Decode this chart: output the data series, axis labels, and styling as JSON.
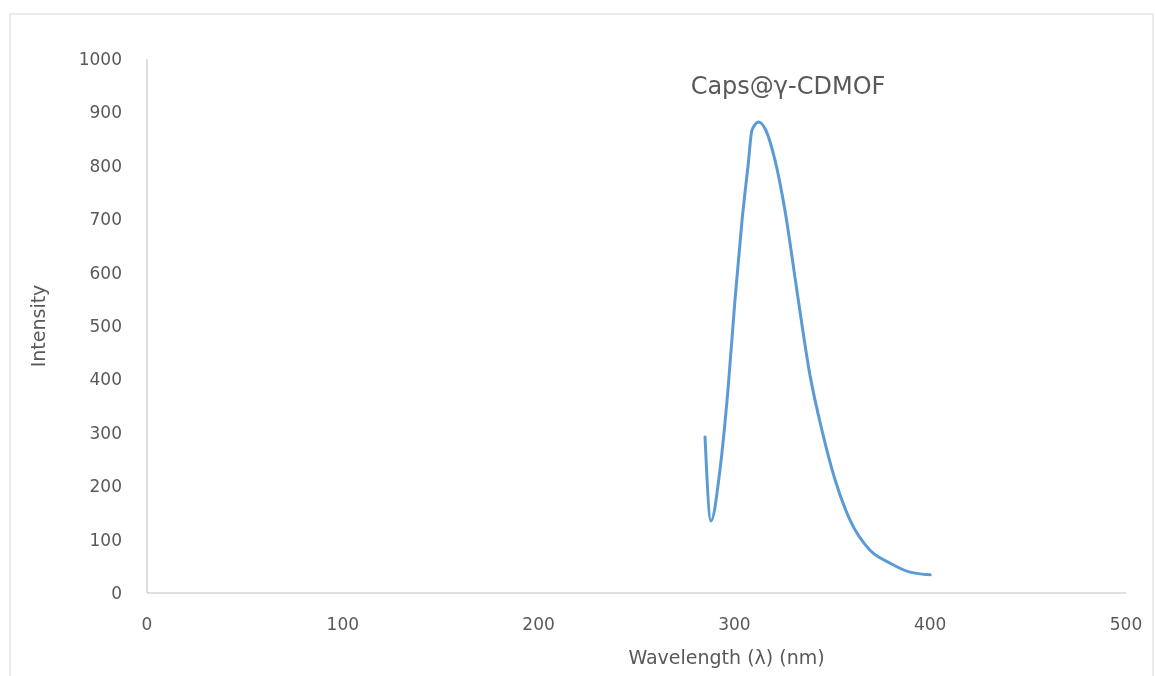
{
  "chart_data": {
    "type": "line",
    "title": "Caps@γ-CDMOF",
    "xlabel": "Wavelength (λ) (nm)",
    "ylabel": "Intensity",
    "series": [
      {
        "color": "#5b9bd5",
        "x": [
          285,
          288,
          292.6,
          296.7,
          300.3,
          303.9,
          307,
          309,
          312.5,
          316,
          320.7,
          325.8,
          331.9,
          338.6,
          344.7,
          351.4,
          359,
          369.3,
          379.5,
          389.7,
          400
        ],
        "values": [
          292,
          135,
          230,
          380,
          549,
          698,
          801,
          867,
          882,
          867,
          811,
          717,
          567,
          408,
          305,
          212,
          137,
          80,
          56,
          39,
          34
        ]
      }
    ],
    "xlim": [
      0,
      500
    ],
    "xticks": [
      0,
      100,
      200,
      300,
      400,
      500
    ],
    "ylim": [
      0,
      1000
    ],
    "yticks": [
      0,
      100,
      200,
      300,
      400,
      500,
      600,
      700,
      800,
      900,
      1000
    ],
    "grid": false,
    "marker": "none",
    "line_style": "solid"
  }
}
